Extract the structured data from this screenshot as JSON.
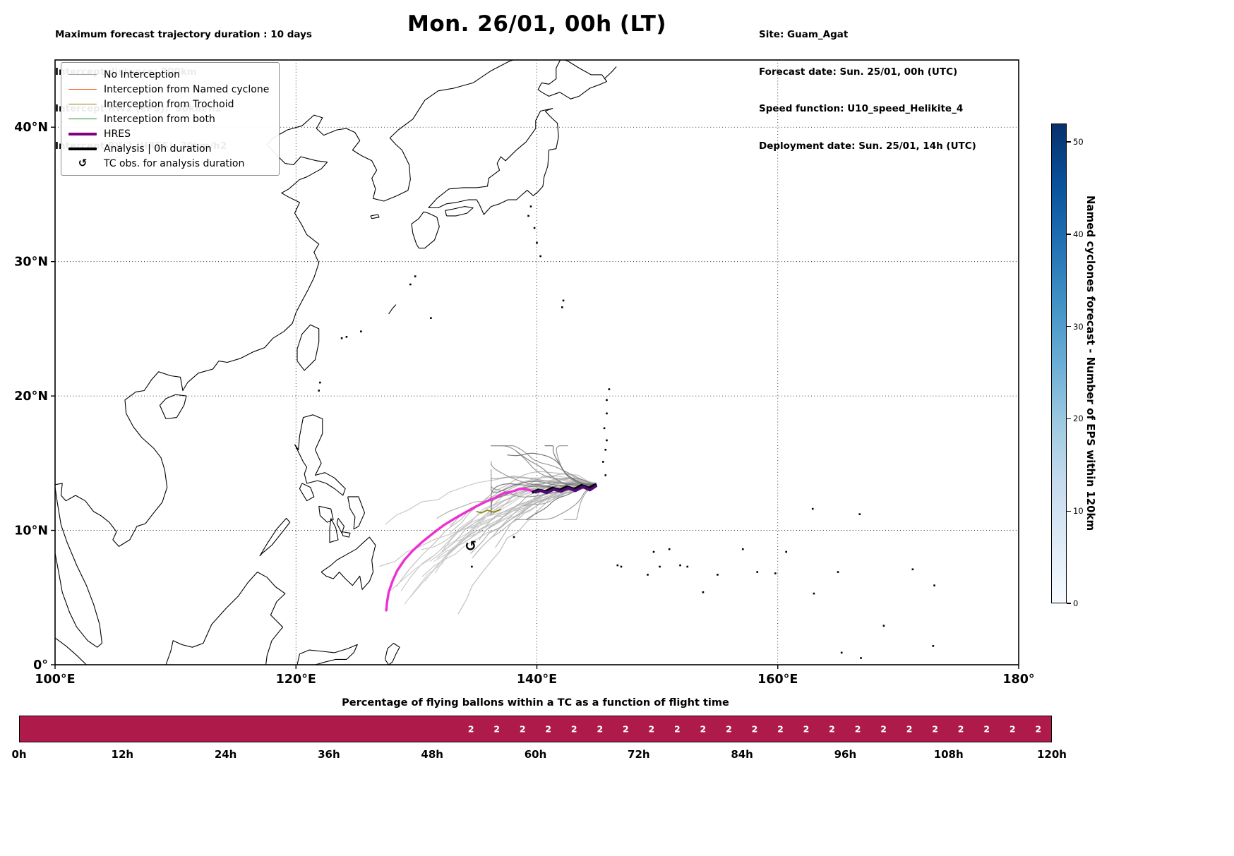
{
  "header": {
    "left_lines": [
      "Maximum forecast trajectory duration : 10 days",
      "Intercept distance: 300km",
      "Intercept RW2 (EPS):  30km/h2",
      "Intercept RW2 (HRES): 30km/h2"
    ],
    "title": "Mon. 26/01, 00h (LT)",
    "right_lines": [
      "Site: Guam_Agat",
      "Forecast date: Sun. 25/01, 00h (UTC)",
      "Speed function: U10_speed_Helikite_4",
      "Deployment date: Sun. 25/01, 14h (UTC)"
    ]
  },
  "legend": {
    "items": [
      {
        "label": "No Interception",
        "type": "line",
        "color": "#a0a0a0",
        "width": 1.5
      },
      {
        "label": "Interception from Named cyclone",
        "type": "line",
        "color": "#ff4500",
        "width": 1.5
      },
      {
        "label": "Interception from Trochoid",
        "type": "line",
        "color": "#8b8000",
        "width": 1.5
      },
      {
        "label": "Interception from both",
        "type": "line",
        "color": "#228b22",
        "width": 1.5
      },
      {
        "label": "HRES",
        "type": "line",
        "color": "#800080",
        "width": 4
      },
      {
        "label": "Analysis | 0h duration",
        "type": "line",
        "color": "#000000",
        "width": 4
      },
      {
        "label": "TC obs. for analysis duration",
        "type": "symbol",
        "symbol": "↺",
        "color": "#000000"
      }
    ]
  },
  "map": {
    "lon_min": 100,
    "lon_max": 180,
    "lat_min": 0,
    "lat_max": 45,
    "x_ticks": [
      {
        "v": 100,
        "label": "100°E"
      },
      {
        "v": 120,
        "label": "120°E"
      },
      {
        "v": 140,
        "label": "140°E"
      },
      {
        "v": 160,
        "label": "160°E"
      },
      {
        "v": 180,
        "label": "180°"
      }
    ],
    "y_ticks": [
      {
        "v": 0,
        "label": "0°"
      },
      {
        "v": 10,
        "label": "10°N"
      },
      {
        "v": 20,
        "label": "20°N"
      },
      {
        "v": 30,
        "label": "30°N"
      },
      {
        "v": 40,
        "label": "40°N"
      }
    ],
    "grid_lons": [
      120,
      140,
      160,
      180
    ],
    "grid_lats": [
      10,
      20,
      30,
      40
    ]
  },
  "colorbar": {
    "label": "Named cyclones forecast - Number of EPS within 120km",
    "ticks": [
      0,
      10,
      20,
      30,
      40,
      50
    ],
    "vmax": 52,
    "gradient": [
      "#f7fbff",
      "#deebf7",
      "#c6dbef",
      "#9ecae1",
      "#6baed6",
      "#4292c6",
      "#2171b5",
      "#08519c",
      "#08306b"
    ]
  },
  "chart_data": {
    "type": "line",
    "title": "Mon. 26/01, 00h (LT)",
    "projection": {
      "lon_range": [
        100,
        180
      ],
      "lat_range": [
        0,
        45
      ],
      "grid": "dotted"
    },
    "tc_obs": {
      "lon": 134.5,
      "lat": 8.85,
      "symbol": "↺"
    },
    "tracks": [
      {
        "name": "trochoid-intercept",
        "color": "#8b8000",
        "width": 1.6,
        "points": [
          [
            137.0,
            11.55
          ],
          [
            136.4,
            11.35
          ],
          [
            135.9,
            11.5
          ],
          [
            135.4,
            11.3
          ],
          [
            135.0,
            11.4
          ]
        ]
      },
      {
        "name": "hres",
        "color": "#ee2fd2",
        "width": 3.4,
        "points": [
          [
            139.9,
            12.85
          ],
          [
            139.2,
            13.05
          ],
          [
            138.6,
            13.1
          ],
          [
            138.0,
            12.9
          ],
          [
            137.2,
            12.75
          ],
          [
            136.5,
            12.4
          ],
          [
            135.8,
            12.15
          ],
          [
            135.0,
            11.8
          ],
          [
            134.1,
            11.35
          ],
          [
            133.2,
            10.9
          ],
          [
            132.3,
            10.4
          ],
          [
            131.4,
            9.8
          ],
          [
            130.5,
            9.15
          ],
          [
            129.7,
            8.5
          ],
          [
            129.0,
            7.8
          ],
          [
            128.4,
            7.0
          ],
          [
            128.0,
            6.2
          ],
          [
            127.7,
            5.4
          ],
          [
            127.55,
            4.6
          ],
          [
            127.5,
            4.05
          ]
        ]
      },
      {
        "name": "analysis",
        "color": "#000000",
        "width": 4,
        "points": [
          [
            144.85,
            13.4
          ],
          [
            144.3,
            13.15
          ],
          [
            143.7,
            13.35
          ],
          [
            143.1,
            13.05
          ],
          [
            142.5,
            13.25
          ],
          [
            141.9,
            13.0
          ],
          [
            141.3,
            13.15
          ],
          [
            140.7,
            12.9
          ],
          [
            140.1,
            13.0
          ],
          [
            139.7,
            12.85
          ]
        ]
      },
      {
        "name": "hres-east",
        "color": "#4f0a78",
        "width": 4,
        "points": [
          [
            144.9,
            13.3
          ],
          [
            144.4,
            13.0
          ],
          [
            143.8,
            13.25
          ],
          [
            143.2,
            12.95
          ],
          [
            142.6,
            13.15
          ],
          [
            142.0,
            12.9
          ],
          [
            141.4,
            13.05
          ],
          [
            140.8,
            12.8
          ],
          [
            140.3,
            12.95
          ],
          [
            139.9,
            12.85
          ]
        ]
      }
    ],
    "ensemble": {
      "seed": 20260126,
      "origin": [
        144.82,
        13.4
      ],
      "long_count": 18,
      "medium_count": 10,
      "short_count": 16,
      "long_colors": [
        "#cecece",
        "#c4c4c4",
        "#bcbcbc"
      ],
      "medium_colors": [
        "#b4b4b4",
        "#aaaaaa"
      ],
      "short_colors": [
        "#909090",
        "#7c7c7c",
        "#a2a2a2",
        "#6f6f6f"
      ],
      "line_width": 1.2
    },
    "bottom_bar": {
      "title": "Percentage of flying ballons within a TC as a function of flight time",
      "bar_color": "#ae1a49",
      "hours_max": 120,
      "hour_tick_step": 12,
      "hour_ticks": [
        "0h",
        "12h",
        "24h",
        "36h",
        "48h",
        "60h",
        "72h",
        "84h",
        "96h",
        "108h",
        "120h"
      ],
      "value_labels": {
        "start_h": 51,
        "step_h": 3,
        "end_h": 120,
        "value": "2",
        "color": "#ffffff"
      }
    }
  }
}
